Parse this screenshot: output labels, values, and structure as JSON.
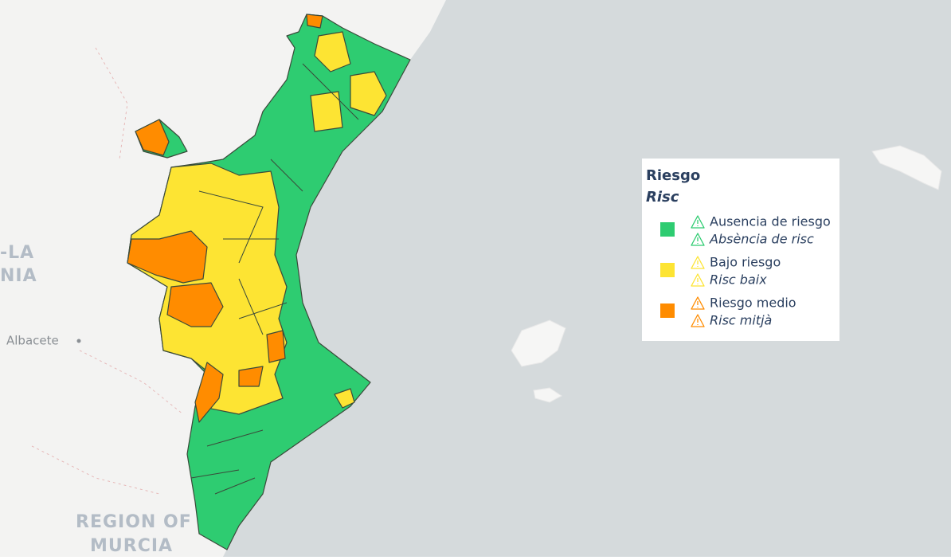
{
  "map_labels": [
    "-LA",
    "NIA",
    "Albacete",
    "REGION OF",
    "MURCIA"
  ],
  "legend": {
    "title": "Riesgo",
    "subtitle": "Risc",
    "items": [
      {
        "label": "Ausencia de riesgo",
        "label_alt": "Absència de risc",
        "color": "#2ecc71"
      },
      {
        "label": "Bajo riesgo",
        "label_alt": "Risc baix",
        "color": "#fde433"
      },
      {
        "label": "Riesgo medio",
        "label_alt": "Risc mitjà",
        "color": "#ff8c00"
      }
    ]
  }
}
